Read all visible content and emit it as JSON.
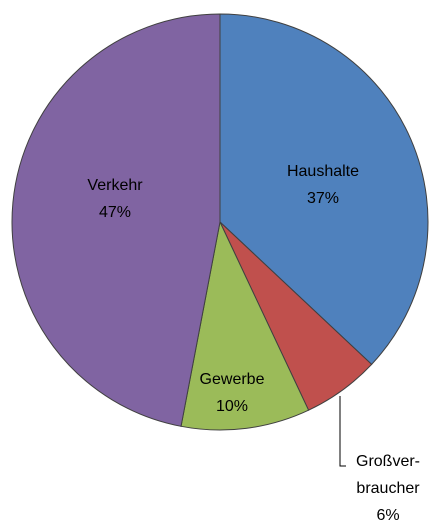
{
  "chart_data": {
    "type": "pie",
    "categories": [
      "Haushalte",
      "Großver-\nbraucher",
      "Gewerbe",
      "Verkehr"
    ],
    "values": [
      37,
      6,
      10,
      47
    ],
    "value_labels": [
      "37%",
      "6%",
      "10%",
      "47%"
    ],
    "colors": [
      "#4f81bd",
      "#c0504d",
      "#9bbb59",
      "#8064a2"
    ]
  }
}
